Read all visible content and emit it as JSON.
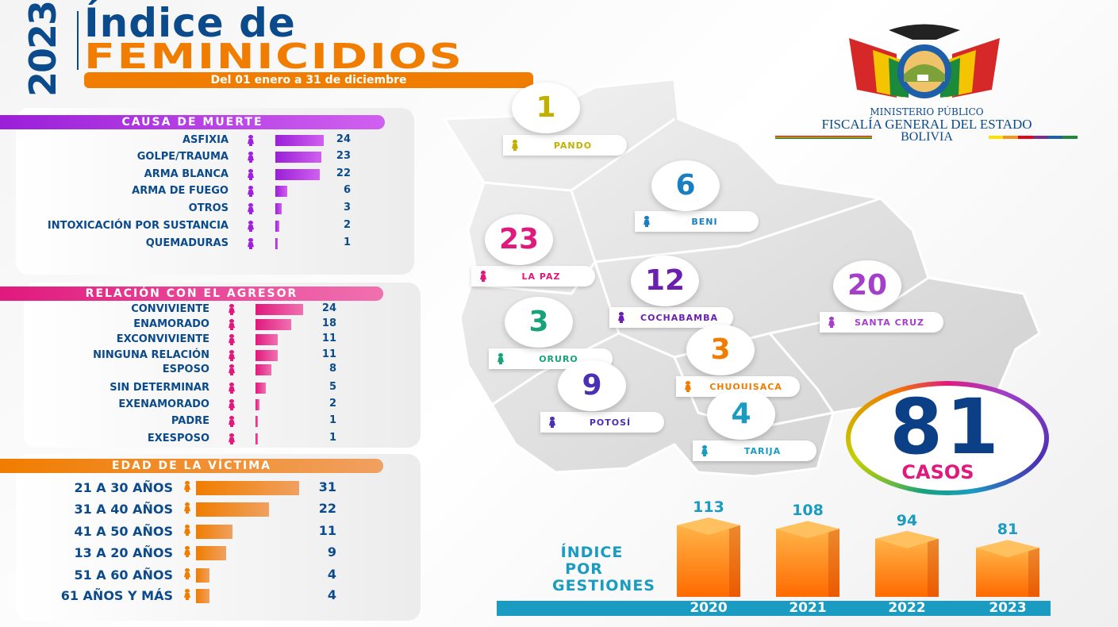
{
  "header": {
    "year": "2023",
    "title_line1": "Índice de",
    "title_line2": "FEMINICIDIOS",
    "subtitle": "Del 01 enero a 31 de diciembre"
  },
  "logo": {
    "line1": "MINISTERIO PÚBLICO",
    "line2": "FISCALÍA GENERAL DEL ESTADO",
    "line3": "BOLIVIA"
  },
  "colors": {
    "blue": "#0b4a8b",
    "orange": "#f07d00",
    "purple": "#a020e0",
    "magenta": "#e0197d",
    "cyan": "#1a9bc1"
  },
  "chart_data": [
    {
      "type": "bar",
      "title": "CAUSA DE MUERTE",
      "categories": [
        "ASFIXIA",
        "GOLPE/TRAUMA",
        "ARMA BLANCA",
        "ARMA DE FUEGO",
        "OTROS",
        "INTOXICACIÓN POR SUSTANCIA",
        "QUEMADURAS"
      ],
      "values": [
        24,
        23,
        22,
        6,
        3,
        2,
        1
      ],
      "color": "#a020e0"
    },
    {
      "type": "bar",
      "title": "RELACIÓN CON EL AGRESOR",
      "categories": [
        "CONVIVIENTE",
        "ENAMORADO",
        "EXCONVIVIENTE",
        "NINGUNA RELACIÓN",
        "ESPOSO",
        "SIN DETERMINAR",
        "EXENAMORADO",
        "PADRE",
        "EXESPOSO"
      ],
      "values": [
        24,
        18,
        11,
        11,
        8,
        5,
        2,
        1,
        1
      ],
      "color": "#e0197d"
    },
    {
      "type": "bar",
      "title": "EDAD DE LA VÍCTIMA",
      "categories": [
        "21 A 30 AÑOS",
        "31 A 40 AÑOS",
        "41 A 50 AÑOS",
        "13 A 20 AÑOS",
        "51 A 60 AÑOS",
        "61 AÑOS Y MÁS"
      ],
      "values": [
        31,
        22,
        11,
        9,
        4,
        4
      ],
      "color": "#f07d00"
    },
    {
      "type": "bar",
      "title": "ÍNDICE POR GESTIONES",
      "categories": [
        "2020",
        "2021",
        "2022",
        "2023"
      ],
      "values": [
        113,
        108,
        94,
        81
      ],
      "color": "#ff8c1a"
    }
  ],
  "departments": [
    {
      "name": "PANDO",
      "value": "1",
      "color": "#c2b000"
    },
    {
      "name": "BENI",
      "value": "6",
      "color": "#1a7fc1"
    },
    {
      "name": "LA PAZ",
      "value": "23",
      "color": "#e0197d"
    },
    {
      "name": "COCHABAMBA",
      "value": "12",
      "color": "#6a1fb0"
    },
    {
      "name": "SANTA CRUZ",
      "value": "20",
      "color": "#a33fc9"
    },
    {
      "name": "ORURO",
      "value": "3",
      "color": "#16a37a"
    },
    {
      "name": "CHUQUISACA",
      "value": "3",
      "color": "#f07d00"
    },
    {
      "name": "POTOSÍ",
      "value": "9",
      "color": "#4b2fb5"
    },
    {
      "name": "TARIJA",
      "value": "4",
      "color": "#1a9bc1"
    }
  ],
  "total": {
    "value": "81",
    "label": "CASOS"
  },
  "gestiones": {
    "label_line1": "ÍNDICE",
    "label_line2": "POR",
    "label_line3": "GESTIONES"
  }
}
